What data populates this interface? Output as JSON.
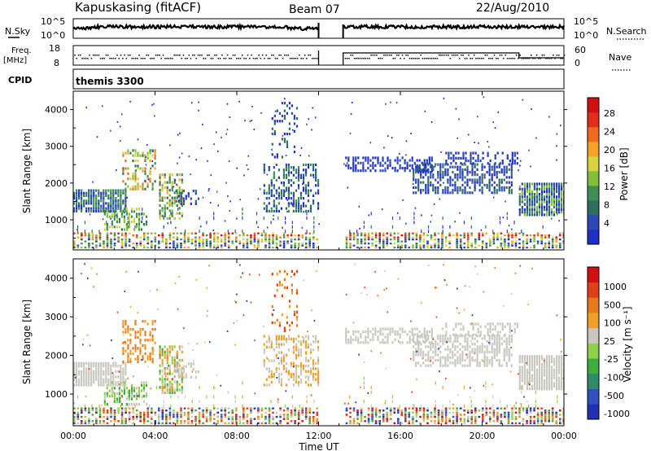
{
  "header": {
    "station": "Kapuskasing (fitACF)",
    "beam": "Beam 07",
    "date": "22/Aug/2010"
  },
  "top_panels": {
    "nsky_label": "N.Sky",
    "nsky_ticks": [
      "10^5",
      "10^0"
    ],
    "nsearch_label": "N.Search",
    "nsearch_ticks": [
      "10^5",
      "10^0"
    ],
    "freq_label": "Freq.",
    "freq_unit": "[MHz]",
    "freq_ticks": [
      "18",
      "8"
    ],
    "nave_label": "Nave",
    "nave_ticks": [
      "60",
      "0"
    ],
    "cpid_label": "CPID",
    "cpid_value": "themis 3300"
  },
  "chart_data": [
    {
      "type": "heatmap",
      "name": "power",
      "ylabel": "Slant Range [km]",
      "xlabel": "Time UT",
      "yticks": [
        1000,
        2000,
        3000,
        4000
      ],
      "ylim": [
        180,
        4500
      ],
      "xticks": [
        "00:00",
        "04:00",
        "08:00",
        "12:00",
        "16:00",
        "20:00",
        "00:00"
      ],
      "xlim_hours": [
        0,
        24
      ],
      "data_gap_hours": [
        12.0,
        13.2
      ],
      "colorbar": {
        "label": "Power [dB]",
        "ticks": [
          "4",
          "8",
          "12",
          "16",
          "20",
          "24",
          "28"
        ],
        "colors": [
          "#1e2ec8",
          "#2c47b8",
          "#2e6f5d",
          "#3f8f52",
          "#7fbf3b",
          "#d6d43a",
          "#f4a322",
          "#f06c1a",
          "#e52d1c",
          "#d01010"
        ]
      }
    },
    {
      "type": "heatmap",
      "name": "velocity",
      "ylabel": "Slant Range [km]",
      "xlabel": "Time UT",
      "yticks": [
        1000,
        2000,
        3000,
        4000
      ],
      "ylim": [
        180,
        4500
      ],
      "xticks": [
        "00:00",
        "04:00",
        "08:00",
        "12:00",
        "16:00",
        "20:00",
        "00:00"
      ],
      "xlim_hours": [
        0,
        24
      ],
      "data_gap_hours": [
        12.0,
        13.2
      ],
      "colorbar": {
        "label": "Velocity [m s⁻¹]",
        "ticks": [
          "1000",
          "500",
          "100",
          "25",
          "-25",
          "-100",
          "-500",
          "-1000"
        ],
        "colors": [
          "#2030b0",
          "#3050c0",
          "#2e8a6a",
          "#3fae3f",
          "#8fd04a",
          "#c8c8c0",
          "#f0a028",
          "#e87a1c",
          "#e04018",
          "#d01010"
        ]
      }
    }
  ]
}
